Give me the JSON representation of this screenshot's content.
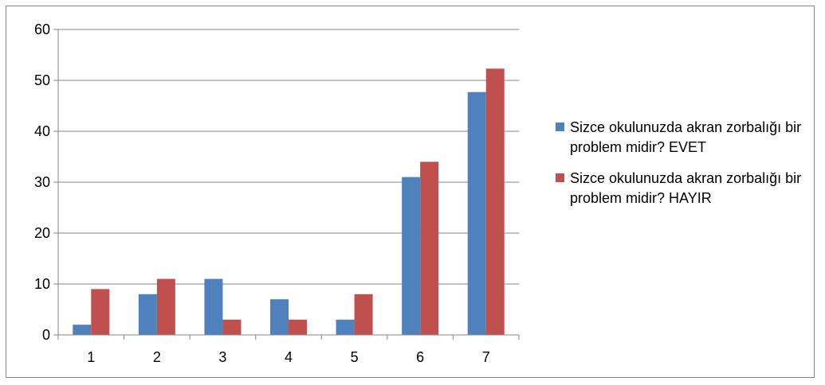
{
  "chart_data": {
    "type": "bar",
    "categories": [
      "1",
      "2",
      "3",
      "4",
      "5",
      "6",
      "7"
    ],
    "series": [
      {
        "name": "Sizce okulunuzda akran zorbalığı bir problem midir? EVET",
        "color": "#4f81bd",
        "values": [
          2,
          8,
          11,
          7,
          3,
          31,
          47.7
        ]
      },
      {
        "name": "Sizce okulunuzda akran zorbalığı bir problem midir? HAYIR",
        "color": "#c0504d",
        "values": [
          9,
          11,
          3,
          3,
          8,
          34,
          52.3
        ]
      }
    ],
    "ylim": [
      0,
      60
    ],
    "yticks": [
      0,
      10,
      20,
      30,
      40,
      50,
      60
    ],
    "grid": true,
    "legend_position": "right"
  }
}
